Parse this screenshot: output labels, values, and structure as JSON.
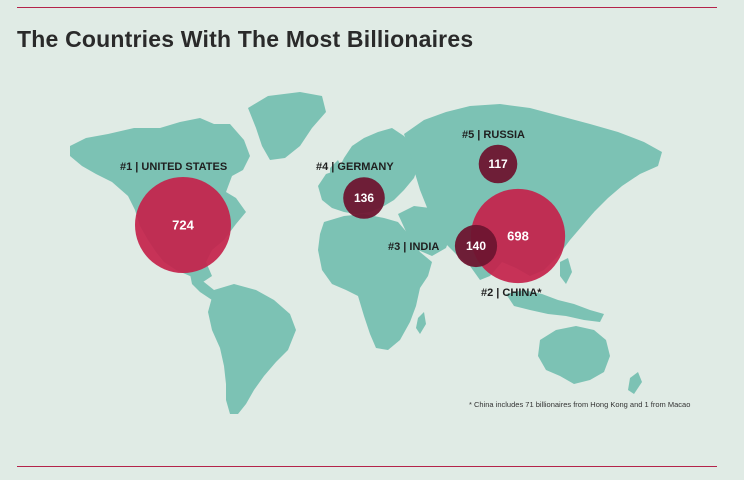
{
  "title": "The Countries With The Most Billionaires",
  "footnote": "* China includes 71 billionaires from Hong Kong and 1 from Macao",
  "colors": {
    "background": "#e0ebe5",
    "land": "#7cc2b4",
    "large_bubble": "#c4224b",
    "small_bubble": "#6e1530",
    "rule": "#b4234a"
  },
  "countries": [
    {
      "rank": "#1",
      "name": "UNITED STATES",
      "value": 724
    },
    {
      "rank": "#2",
      "name": "CHINA*",
      "value": 698
    },
    {
      "rank": "#3",
      "name": "INDIA",
      "value": 140
    },
    {
      "rank": "#4",
      "name": "GERMANY",
      "value": 136
    },
    {
      "rank": "#5",
      "name": "RUSSIA",
      "value": 117
    }
  ],
  "separator": "|"
}
